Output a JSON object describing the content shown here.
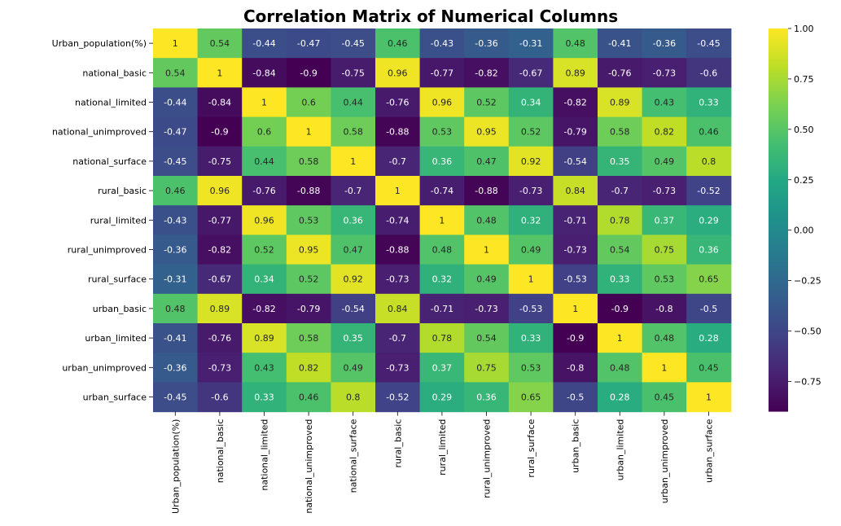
{
  "chart_data": {
    "type": "heatmap",
    "title": "Correlation Matrix of Numerical Columns",
    "xlabel": "",
    "ylabel": "",
    "row_labels": [
      "Urban_population(%)",
      "national_basic",
      "national_limited",
      "national_unimproved",
      "national_surface",
      "rural_basic",
      "rural_limited",
      "rural_unimproved",
      "rural_surface",
      "urban_basic",
      "urban_limited",
      "urban_unimproved",
      "urban_surface"
    ],
    "col_labels": [
      "Urban_population(%)",
      "national_basic",
      "national_limited",
      "national_unimproved",
      "national_surface",
      "rural_basic",
      "rural_limited",
      "rural_unimproved",
      "rural_surface",
      "urban_basic",
      "urban_limited",
      "urban_unimproved",
      "urban_surface"
    ],
    "values": [
      [
        1,
        0.54,
        -0.44,
        -0.47,
        -0.45,
        0.46,
        -0.43,
        -0.36,
        -0.31,
        0.48,
        -0.41,
        -0.36,
        -0.45
      ],
      [
        0.54,
        1,
        -0.84,
        -0.9,
        -0.75,
        0.96,
        -0.77,
        -0.82,
        -0.67,
        0.89,
        -0.76,
        -0.73,
        -0.6
      ],
      [
        -0.44,
        -0.84,
        1,
        0.6,
        0.44,
        -0.76,
        0.96,
        0.52,
        0.34,
        -0.82,
        0.89,
        0.43,
        0.33
      ],
      [
        -0.47,
        -0.9,
        0.6,
        1,
        0.58,
        -0.88,
        0.53,
        0.95,
        0.52,
        -0.79,
        0.58,
        0.82,
        0.46
      ],
      [
        -0.45,
        -0.75,
        0.44,
        0.58,
        1,
        -0.7,
        0.36,
        0.47,
        0.92,
        -0.54,
        0.35,
        0.49,
        0.8
      ],
      [
        0.46,
        0.96,
        -0.76,
        -0.88,
        -0.7,
        1,
        -0.74,
        -0.88,
        -0.73,
        0.84,
        -0.7,
        -0.73,
        -0.52
      ],
      [
        -0.43,
        -0.77,
        0.96,
        0.53,
        0.36,
        -0.74,
        1,
        0.48,
        0.32,
        -0.71,
        0.78,
        0.37,
        0.29
      ],
      [
        -0.36,
        -0.82,
        0.52,
        0.95,
        0.47,
        -0.88,
        0.48,
        1,
        0.49,
        -0.73,
        0.54,
        0.75,
        0.36
      ],
      [
        -0.31,
        -0.67,
        0.34,
        0.52,
        0.92,
        -0.73,
        0.32,
        0.49,
        1,
        -0.53,
        0.33,
        0.53,
        0.65
      ],
      [
        0.48,
        0.89,
        -0.82,
        -0.79,
        -0.54,
        0.84,
        -0.71,
        -0.73,
        -0.53,
        1,
        -0.9,
        -0.8,
        -0.5
      ],
      [
        -0.41,
        -0.76,
        0.89,
        0.58,
        0.35,
        -0.7,
        0.78,
        0.54,
        0.33,
        -0.9,
        1,
        0.48,
        0.28
      ],
      [
        -0.36,
        -0.73,
        0.43,
        0.82,
        0.49,
        -0.73,
        0.37,
        0.75,
        0.53,
        -0.8,
        0.48,
        1,
        0.45
      ],
      [
        -0.45,
        -0.6,
        0.33,
        0.46,
        0.8,
        -0.52,
        0.29,
        0.36,
        0.65,
        -0.5,
        0.28,
        0.45,
        1
      ]
    ],
    "colormap": "viridis",
    "colorbar": {
      "range": [
        -0.9,
        1.0
      ],
      "ticks": [
        1.0,
        0.75,
        0.5,
        0.25,
        0.0,
        -0.25,
        -0.5,
        -0.75
      ],
      "tick_labels": [
        "1.00",
        "0.75",
        "0.50",
        "0.25",
        "0.00",
        "−0.25",
        "−0.50",
        "−0.75"
      ]
    },
    "annotations": true
  }
}
